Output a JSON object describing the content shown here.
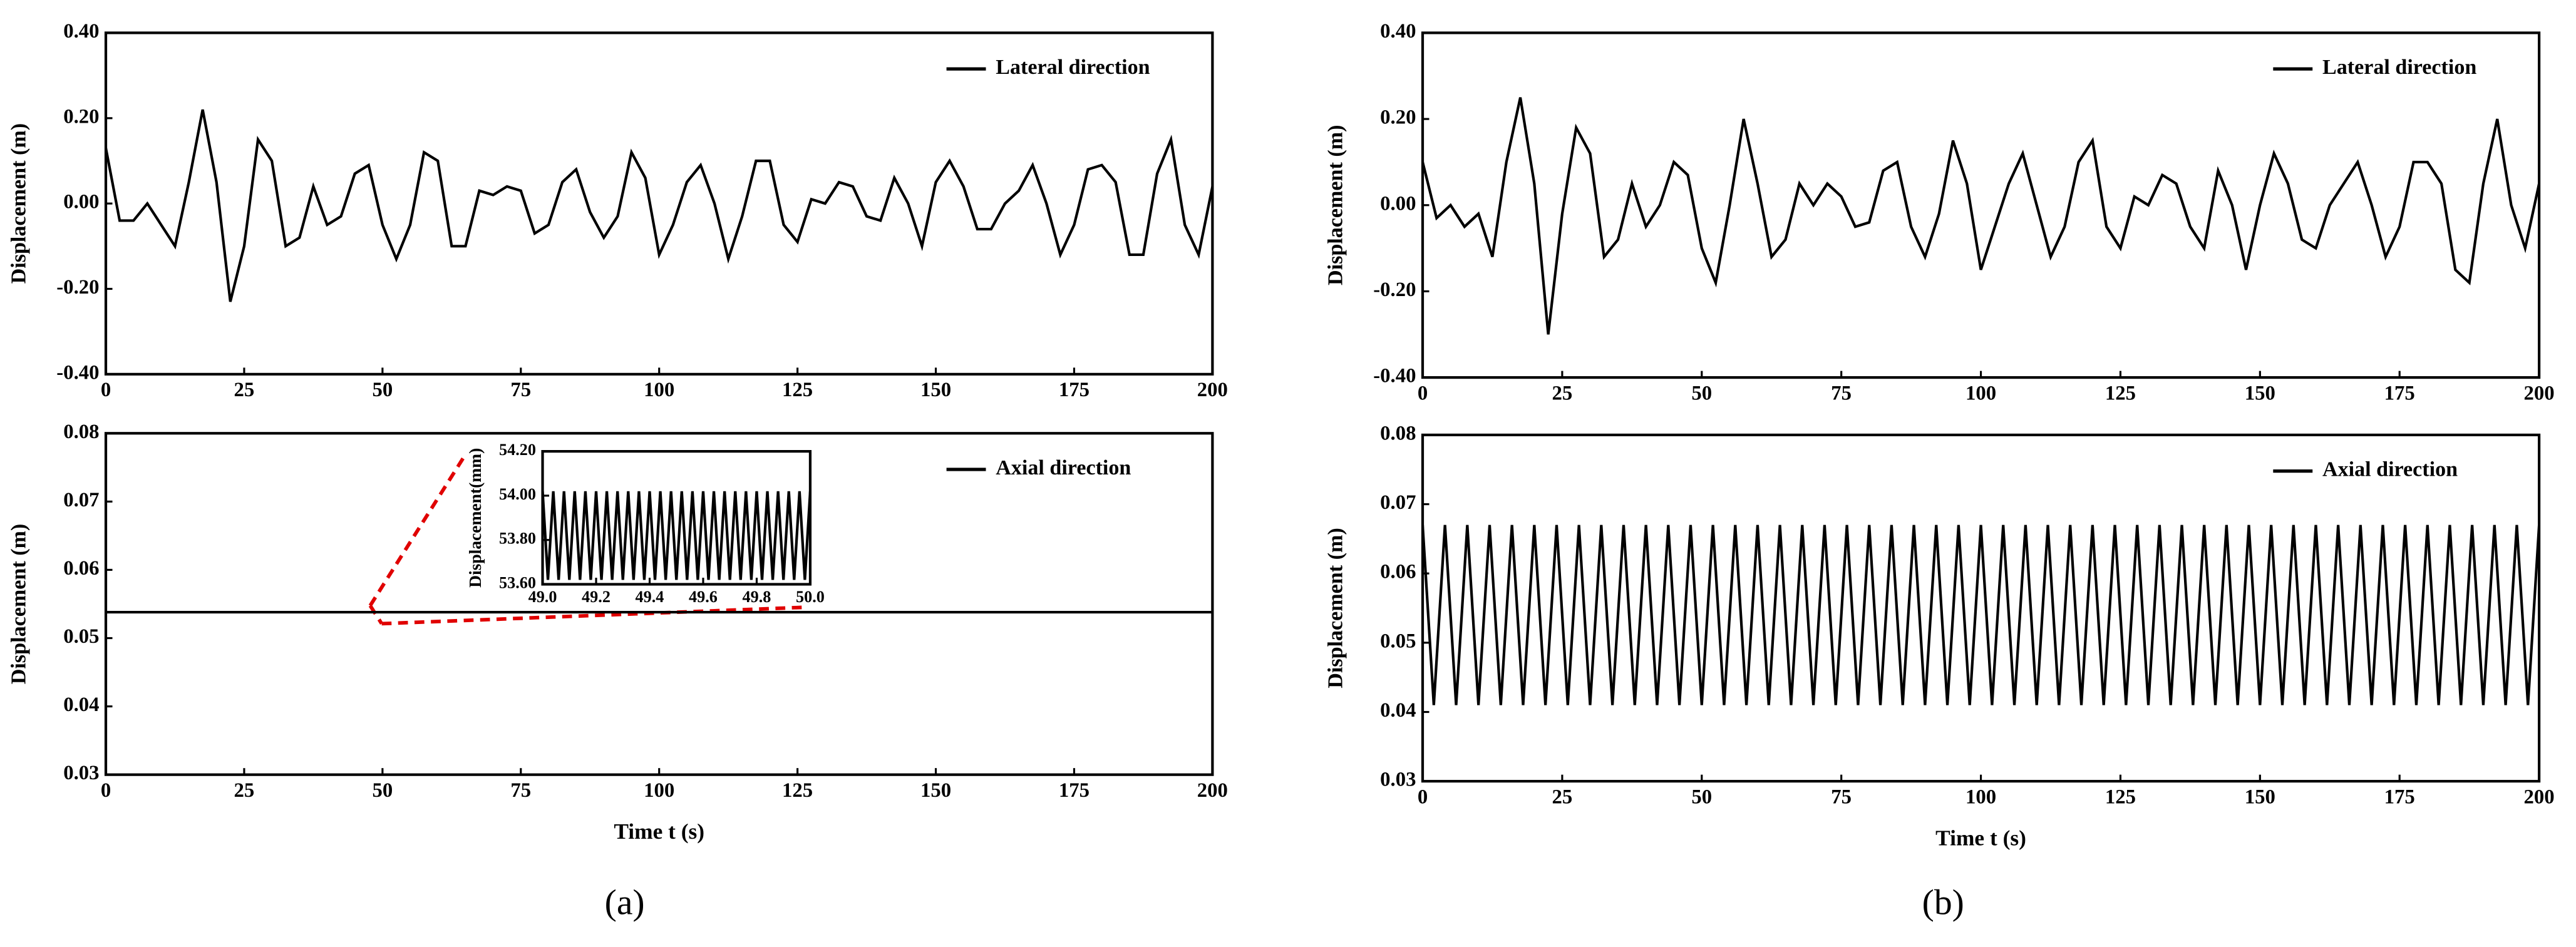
{
  "panels": [
    "(a)",
    "(b)"
  ],
  "chart_data": [
    {
      "type": "line",
      "ylabel": "Displacement (m)",
      "x": [
        0,
        2.5,
        5,
        7.5,
        10,
        12.5,
        15,
        17.5,
        20,
        22.5,
        25,
        27.5,
        30,
        32.5,
        35,
        37.5,
        40,
        42.5,
        45,
        47.5,
        50,
        52.5,
        55,
        57.5,
        60,
        62.5,
        65,
        67.5,
        70,
        72.5,
        75,
        77.5,
        80,
        82.5,
        85,
        87.5,
        90,
        92.5,
        95,
        97.5,
        100,
        102.5,
        105,
        107.5,
        110,
        112.5,
        115,
        117.5,
        120,
        122.5,
        125,
        127.5,
        130,
        132.5,
        135,
        137.5,
        140,
        142.5,
        145,
        147.5,
        150,
        152.5,
        155,
        157.5,
        160,
        162.5,
        165,
        167.5,
        170,
        172.5,
        175,
        177.5,
        180,
        182.5,
        185,
        187.5,
        190,
        192.5,
        195,
        197.5,
        200
      ],
      "series": [
        {
          "name": "Lateral direction",
          "color": "#000000",
          "values": [
            0.13,
            -0.04,
            -0.04,
            0,
            -0.05,
            -0.1,
            0.05,
            0.22,
            0.05,
            -0.23,
            -0.1,
            0.15,
            0.1,
            -0.1,
            -0.08,
            0.04,
            -0.05,
            -0.03,
            0.07,
            0.09,
            -0.05,
            -0.13,
            -0.05,
            0.12,
            0.1,
            -0.1,
            -0.1,
            0.03,
            0.02,
            0.04,
            0.03,
            -0.07,
            -0.05,
            0.05,
            0.08,
            -0.02,
            -0.08,
            -0.03,
            0.12,
            0.06,
            -0.12,
            -0.05,
            0.05,
            0.09,
            0,
            -0.13,
            -0.03,
            0.1,
            0.1,
            -0.05,
            -0.09,
            0.01,
            0,
            0.05,
            0.04,
            -0.03,
            -0.04,
            0.06,
            0,
            -0.1,
            0.05,
            0.1,
            0.04,
            -0.06,
            -0.06,
            0,
            0.03,
            0.09,
            0,
            -0.12,
            -0.05,
            0.08,
            0.09,
            0.05,
            -0.12,
            -0.12,
            0.07,
            0.15,
            -0.05,
            -0.12,
            0.04
          ]
        }
      ],
      "xlim": [
        0,
        200
      ],
      "xticks": [
        0,
        25,
        50,
        75,
        100,
        125,
        150,
        175,
        200
      ],
      "ylim": [
        -0.4,
        0.4
      ],
      "yticks": [
        {
          "value": -0.4,
          "label": "-0.40"
        },
        {
          "value": -0.2,
          "label": "-0.20"
        },
        {
          "value": 0,
          "label": "0.00"
        },
        {
          "value": 0.2,
          "label": "0.20"
        },
        {
          "value": 0.4,
          "label": "0.40"
        }
      ]
    },
    {
      "type": "line",
      "ylabel": "Displacement (m)",
      "xlabel": "Time t (s)",
      "x": [
        0,
        200
      ],
      "series": [
        {
          "name": "Axial direction",
          "color": "#000000",
          "values": [
            0.0538,
            0.0538
          ]
        }
      ],
      "xlim": [
        0,
        200
      ],
      "xticks": [
        0,
        25,
        50,
        75,
        100,
        125,
        150,
        175,
        200
      ],
      "ylim": [
        0.03,
        0.08
      ],
      "yticks": [
        {
          "value": 0.03,
          "label": "0.03"
        },
        {
          "value": 0.04,
          "label": "0.04"
        },
        {
          "value": 0.05,
          "label": "0.05"
        },
        {
          "value": 0.06,
          "label": "0.06"
        },
        {
          "value": 0.07,
          "label": "0.07"
        },
        {
          "value": 0.08,
          "label": "0.08"
        }
      ]
    },
    {
      "type": "line",
      "ylabel": "Displacement(mm)",
      "x": [
        49,
        49.02,
        49.04,
        49.06,
        49.08,
        49.1,
        49.12,
        49.14,
        49.16,
        49.18,
        49.2,
        49.22,
        49.24,
        49.26,
        49.28,
        49.3,
        49.32,
        49.34,
        49.36,
        49.38,
        49.4,
        49.42,
        49.44,
        49.46,
        49.48,
        49.5,
        49.52,
        49.54,
        49.56,
        49.58,
        49.6,
        49.62,
        49.64,
        49.66,
        49.68,
        49.7,
        49.72,
        49.74,
        49.76,
        49.78,
        49.8,
        49.82,
        49.84,
        49.86,
        49.88,
        49.9,
        49.92,
        49.94,
        49.96,
        49.98,
        50
      ],
      "series": [
        {
          "color": "#000000",
          "values": [
            54.02,
            53.62,
            54.02,
            53.62,
            54.02,
            53.62,
            54.02,
            53.62,
            54.02,
            53.62,
            54.02,
            53.62,
            54.02,
            53.62,
            54.02,
            53.62,
            54.02,
            53.62,
            54.02,
            53.62,
            54.02,
            53.62,
            54.02,
            53.62,
            54.02,
            53.62,
            54.02,
            53.62,
            54.02,
            53.62,
            54.02,
            53.62,
            54.02,
            53.62,
            54.02,
            53.62,
            54.02,
            53.62,
            54.02,
            53.62,
            54.02,
            53.62,
            54.02,
            53.62,
            54.02,
            53.62,
            54.02,
            53.62,
            54.02,
            53.62,
            54.02
          ]
        }
      ],
      "xlim": [
        49,
        50
      ],
      "xticks": [
        {
          "value": 49,
          "label": "49.0"
        },
        {
          "value": 49.2,
          "label": "49.2"
        },
        {
          "value": 49.4,
          "label": "49.4"
        },
        {
          "value": 49.6,
          "label": "49.6"
        },
        {
          "value": 49.8,
          "label": "49.8"
        },
        {
          "value": 50,
          "label": "50.0"
        }
      ],
      "ylim": [
        53.6,
        54.2
      ],
      "yticks": [
        {
          "value": 53.6,
          "label": "53.60"
        },
        {
          "value": 53.8,
          "label": "53.80"
        },
        {
          "value": 54,
          "label": "54.00"
        },
        {
          "value": 54.2,
          "label": "54.20"
        }
      ]
    },
    {
      "type": "line",
      "ylabel": "Displacement (m)",
      "x": [
        0,
        2.5,
        5,
        7.5,
        10,
        12.5,
        15,
        17.5,
        20,
        22.5,
        25,
        27.5,
        30,
        32.5,
        35,
        37.5,
        40,
        42.5,
        45,
        47.5,
        50,
        52.5,
        55,
        57.5,
        60,
        62.5,
        65,
        67.5,
        70,
        72.5,
        75,
        77.5,
        80,
        82.5,
        85,
        87.5,
        90,
        92.5,
        95,
        97.5,
        100,
        102.5,
        105,
        107.5,
        110,
        112.5,
        115,
        117.5,
        120,
        122.5,
        125,
        127.5,
        130,
        132.5,
        135,
        137.5,
        140,
        142.5,
        145,
        147.5,
        150,
        152.5,
        155,
        157.5,
        160,
        162.5,
        165,
        167.5,
        170,
        172.5,
        175,
        177.5,
        180,
        182.5,
        185,
        187.5,
        190,
        192.5,
        195,
        197.5,
        200
      ],
      "series": [
        {
          "name": "Lateral direction",
          "color": "#000000",
          "values": [
            0.1,
            -0.03,
            0,
            -0.05,
            -0.02,
            -0.12,
            0.1,
            0.25,
            0.05,
            -0.3,
            -0.02,
            0.18,
            0.12,
            -0.12,
            -0.08,
            0.05,
            -0.05,
            0,
            0.1,
            0.07,
            -0.1,
            -0.18,
            0,
            0.2,
            0.05,
            -0.12,
            -0.08,
            0.05,
            0,
            0.05,
            0.02,
            -0.05,
            -0.04,
            0.08,
            0.1,
            -0.05,
            -0.12,
            -0.02,
            0.15,
            0.05,
            -0.15,
            -0.05,
            0.05,
            0.12,
            0,
            -0.12,
            -0.05,
            0.1,
            0.15,
            -0.05,
            -0.1,
            0.02,
            0,
            0.07,
            0.05,
            -0.05,
            -0.1,
            0.08,
            0,
            -0.15,
            0,
            0.12,
            0.05,
            -0.08,
            -0.1,
            0,
            0.05,
            0.1,
            0,
            -0.12,
            -0.05,
            0.1,
            0.1,
            0.05,
            -0.15,
            -0.18,
            0.05,
            0.2,
            0,
            -0.1,
            0.05
          ]
        }
      ],
      "xlim": [
        0,
        200
      ],
      "xticks": [
        0,
        25,
        50,
        75,
        100,
        125,
        150,
        175,
        200
      ],
      "ylim": [
        -0.4,
        0.4
      ],
      "yticks": [
        {
          "value": -0.4,
          "label": "-0.40"
        },
        {
          "value": -0.2,
          "label": "-0.20"
        },
        {
          "value": 0,
          "label": "0.00"
        },
        {
          "value": 0.2,
          "label": "0.20"
        },
        {
          "value": 0.4,
          "label": "0.40"
        }
      ]
    },
    {
      "type": "line",
      "ylabel": "Displacement (m)",
      "xlabel": "Time t (s)",
      "x": [
        0,
        2,
        4,
        6,
        8,
        10,
        12,
        14,
        16,
        18,
        20,
        22,
        24,
        26,
        28,
        30,
        32,
        34,
        36,
        38,
        40,
        42,
        44,
        46,
        48,
        50,
        52,
        54,
        56,
        58,
        60,
        62,
        64,
        66,
        68,
        70,
        72,
        74,
        76,
        78,
        80,
        82,
        84,
        86,
        88,
        90,
        92,
        94,
        96,
        98,
        100,
        102,
        104,
        106,
        108,
        110,
        112,
        114,
        116,
        118,
        120,
        122,
        124,
        126,
        128,
        130,
        132,
        134,
        136,
        138,
        140,
        142,
        144,
        146,
        148,
        150,
        152,
        154,
        156,
        158,
        160,
        162,
        164,
        166,
        168,
        170,
        172,
        174,
        176,
        178,
        180,
        182,
        184,
        186,
        188,
        190,
        192,
        194,
        196,
        198,
        200
      ],
      "series": [
        {
          "name": "Axial direction",
          "color": "#000000",
          "values": [
            0.067,
            0.041,
            0.067,
            0.041,
            0.067,
            0.041,
            0.067,
            0.041,
            0.067,
            0.041,
            0.067,
            0.041,
            0.067,
            0.041,
            0.067,
            0.041,
            0.067,
            0.041,
            0.067,
            0.041,
            0.067,
            0.041,
            0.067,
            0.041,
            0.067,
            0.041,
            0.067,
            0.041,
            0.067,
            0.041,
            0.067,
            0.041,
            0.067,
            0.041,
            0.067,
            0.041,
            0.067,
            0.041,
            0.067,
            0.041,
            0.067,
            0.041,
            0.067,
            0.041,
            0.067,
            0.041,
            0.067,
            0.041,
            0.067,
            0.041,
            0.067,
            0.041,
            0.067,
            0.041,
            0.067,
            0.041,
            0.067,
            0.041,
            0.067,
            0.041,
            0.067,
            0.041,
            0.067,
            0.041,
            0.067,
            0.041,
            0.067,
            0.041,
            0.067,
            0.041,
            0.067,
            0.041,
            0.067,
            0.041,
            0.067,
            0.041,
            0.067,
            0.041,
            0.067,
            0.041,
            0.067,
            0.041,
            0.067,
            0.041,
            0.067,
            0.041,
            0.067,
            0.041,
            0.067,
            0.041,
            0.067,
            0.041,
            0.067,
            0.041,
            0.067,
            0.041,
            0.067,
            0.041,
            0.067,
            0.041,
            0.067
          ]
        }
      ],
      "xlim": [
        0,
        200
      ],
      "xticks": [
        0,
        25,
        50,
        75,
        100,
        125,
        150,
        175,
        200
      ],
      "ylim": [
        0.03,
        0.08
      ],
      "yticks": [
        {
          "value": 0.03,
          "label": "0.03"
        },
        {
          "value": 0.04,
          "label": "0.04"
        },
        {
          "value": 0.05,
          "label": "0.05"
        },
        {
          "value": 0.06,
          "label": "0.06"
        },
        {
          "value": 0.07,
          "label": "0.07"
        },
        {
          "value": 0.08,
          "label": "0.08"
        }
      ]
    }
  ]
}
